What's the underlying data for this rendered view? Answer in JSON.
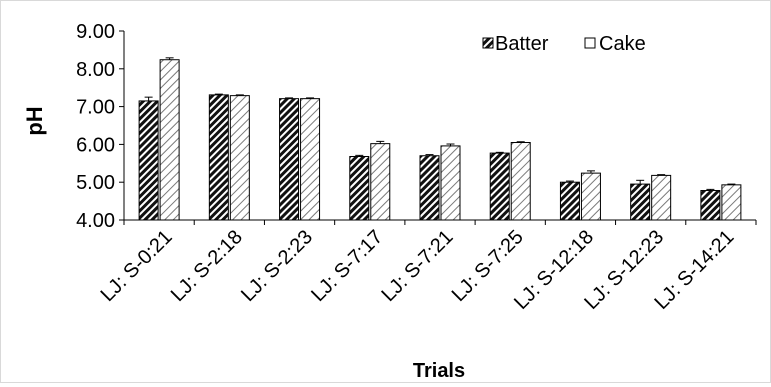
{
  "chart_data": {
    "type": "bar",
    "xlabel": "Trials",
    "ylabel": "pH",
    "ylim": [
      4.0,
      9.0
    ],
    "yticks": [
      "4.00",
      "5.00",
      "6.00",
      "7.00",
      "8.00",
      "9.00"
    ],
    "grid": false,
    "legend_position": "top-right",
    "categories": [
      "LJ: S-0:21",
      "LJ: S-2:18",
      "LJ: S-2:23",
      "LJ: S-7:17",
      "LJ: S-7:21",
      "LJ: S-7:25",
      "LJ: S-12:18",
      "LJ: S-12:23",
      "LJ: S-14:21"
    ],
    "series": [
      {
        "name": "Batter",
        "values": [
          7.15,
          7.31,
          7.21,
          5.68,
          5.7,
          5.77,
          5.0,
          4.95,
          4.78
        ],
        "errors": [
          0.1,
          0.02,
          0.02,
          0.03,
          0.03,
          0.02,
          0.03,
          0.1,
          0.03
        ],
        "pattern": "dense-diagonal-hatch"
      },
      {
        "name": "Cake",
        "values": [
          8.24,
          7.29,
          7.21,
          6.02,
          5.96,
          6.05,
          5.24,
          5.18,
          4.93
        ],
        "errors": [
          0.05,
          0.02,
          0.02,
          0.06,
          0.05,
          0.02,
          0.06,
          0.02,
          0.02
        ],
        "pattern": "light-diagonal-hatch"
      }
    ]
  }
}
